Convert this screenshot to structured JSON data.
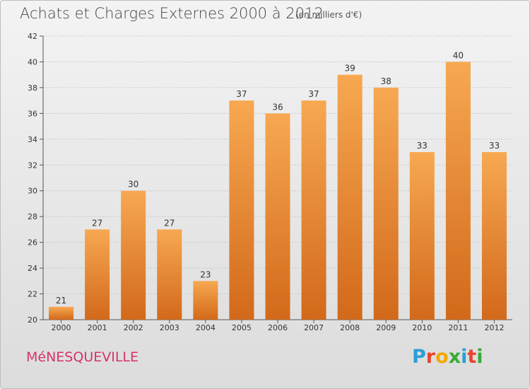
{
  "header": {
    "title": "Achats et Charges Externes 2000 à 2012",
    "subtitle": "(en milliers d'€)"
  },
  "footer": {
    "commune": "MéNESQUEVILLE",
    "logo_letters": [
      "P",
      "r",
      "o",
      "x",
      "i",
      "t",
      "i"
    ],
    "logo_colors": [
      "#2a9fd6",
      "#e8442e",
      "#f2a900",
      "#3aa935",
      "#2a9fd6",
      "#e8442e",
      "#3aa935"
    ]
  },
  "chart_data": {
    "type": "bar",
    "title": "Achats et Charges Externes 2000 à 2012",
    "subtitle": "(en milliers d'€)",
    "categories": [
      "2000",
      "2001",
      "2002",
      "2003",
      "2004",
      "2005",
      "2006",
      "2007",
      "2008",
      "2009",
      "2010",
      "2011",
      "2012"
    ],
    "values": [
      21,
      27,
      30,
      27,
      23,
      37,
      36,
      37,
      39,
      38,
      33,
      40,
      33
    ],
    "xlabel": "",
    "ylabel": "",
    "ylim": [
      20,
      42
    ],
    "yticks": [
      20,
      22,
      24,
      26,
      28,
      30,
      32,
      34,
      36,
      38,
      40,
      42
    ],
    "grid": true,
    "bar_color_top": "#f7a851",
    "bar_color_bottom": "#d2691a"
  }
}
